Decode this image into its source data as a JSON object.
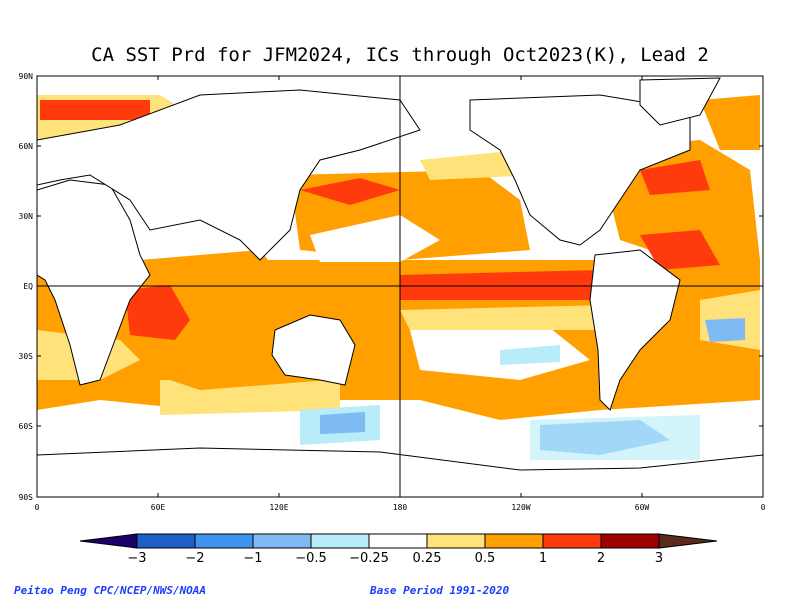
{
  "title": "CA SST Prd for JFM2024, ICs through Oct2023(K), Lead 2",
  "lat_labels": [
    "90N",
    "60N",
    "30N",
    "EQ",
    "30S",
    "60S",
    "90S"
  ],
  "lon_labels": [
    "0",
    "60E",
    "120E",
    "180",
    "120W",
    "60W",
    "0"
  ],
  "colorbar": {
    "ticks": [
      "−3",
      "−2",
      "−1",
      "−0.5",
      "−0.25",
      "0.25",
      "0.5",
      "1",
      "2",
      "3"
    ],
    "colors": [
      "#1a006b",
      "#1f5fc8",
      "#3f93ee",
      "#7fbaf5",
      "#b7ecf8",
      "#ffffff",
      "#ffe27a",
      "#ffa000",
      "#ff3a0d",
      "#a00000",
      "#5a2a1a"
    ]
  },
  "credits": {
    "left": "Peitao Peng CPC/NCEP/NWS/NOAA",
    "right": "Base Period 1991-2020"
  }
}
